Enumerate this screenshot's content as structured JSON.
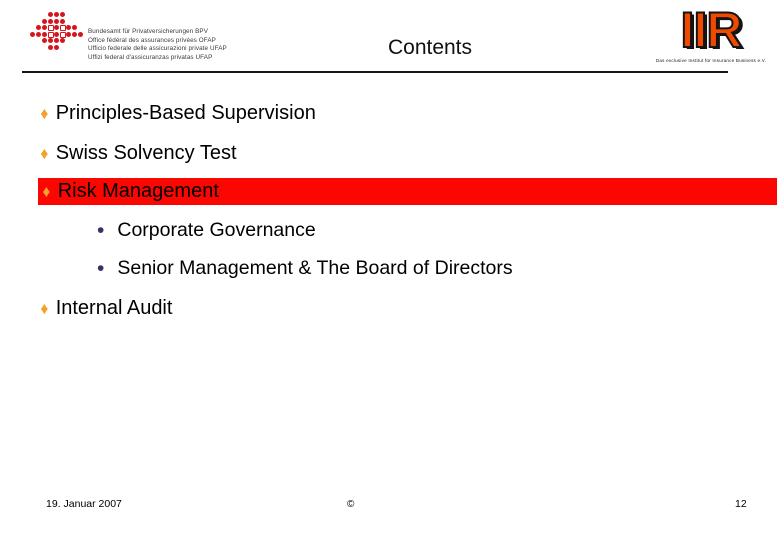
{
  "slide": {
    "title": "Contents",
    "bullets": [
      {
        "level": 1,
        "text": "Principles-Based Supervision",
        "highlighted": false
      },
      {
        "level": 1,
        "text": "Swiss Solvency Test",
        "highlighted": false
      },
      {
        "level": 1,
        "text": "Risk Management",
        "highlighted": true
      },
      {
        "level": 2,
        "text": "Corporate Governance",
        "highlighted": false
      },
      {
        "level": 2,
        "text": "Senior Management & The Board of Directors",
        "highlighted": false
      },
      {
        "level": 1,
        "text": "Internal Audit",
        "highlighted": false
      }
    ],
    "logos": {
      "bpv": {
        "lines": [
          "Bundesamt für Privatversicherungen BPV",
          "Office fédéral des assurances privées OFAP",
          "Ufficio federale delle assicurazioni private UFAP",
          "Uffizi federal d'assicuranzas privatas UFAP"
        ],
        "dot_pattern": [
          "...RRR...",
          "..RRRR...",
          ".RRWRWRR.",
          "RRRWRWRRR",
          "..RRRR...",
          "...RR...."
        ]
      },
      "iir": {
        "text": "IIR",
        "tagline": "Das exclusive Institut für Insurance Business e.V."
      }
    },
    "footer": {
      "date": "19. Januar 2007",
      "copyright": "©",
      "page_number": "12"
    },
    "colors": {
      "highlight_bar": "#fb0600",
      "diamond_bullet": "#f5a028",
      "round_bullet": "#333366",
      "bpv_dot_red": "#d5161d",
      "iir_orange": "#f04a00"
    }
  }
}
